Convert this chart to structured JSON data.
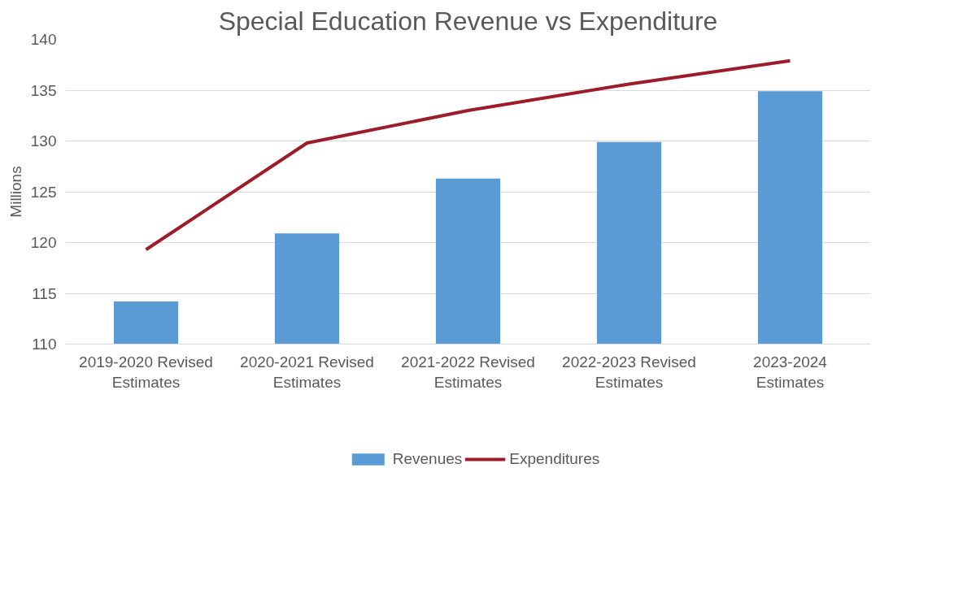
{
  "chart_data": {
    "type": "bar",
    "title": "Special Education Revenue vs Expenditure",
    "ylabel": "Millions",
    "categories": [
      "2019-2020 Revised Estimates",
      "2020-2021 Revised Estimates",
      "2021-2022 Revised Estimates",
      "2022-2023 Revised Estimates",
      "2023-2024 Estimates"
    ],
    "series": [
      {
        "name": "Revenues",
        "color": "#5b9bd5",
        "values": [
          114.2,
          120.9,
          126.3,
          129.9,
          134.9
        ]
      },
      {
        "name": "Expenditures",
        "type": "line",
        "color": "#9e1b2a",
        "values": [
          119.3,
          129.8,
          133.0,
          135.6,
          137.9
        ]
      }
    ],
    "ylim": [
      110,
      140
    ],
    "yticks": [
      110,
      115,
      120,
      125,
      130,
      135,
      140
    ],
    "grid": "y",
    "legend": "bottom"
  }
}
